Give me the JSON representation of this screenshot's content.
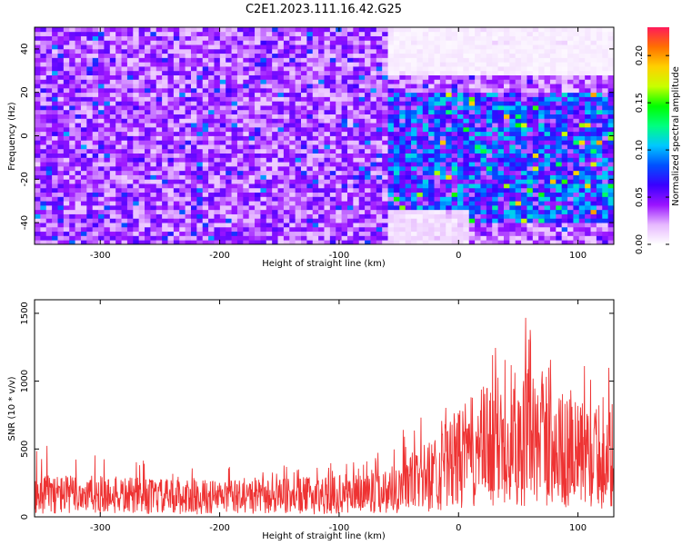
{
  "title": "C2E1.2023.111.16.42.G25",
  "chart_data": [
    {
      "type": "heatmap",
      "xlabel": "Height of straight line (km)",
      "ylabel": "Frequency (Hz)",
      "xlim": [
        -355,
        130
      ],
      "ylim": [
        -50,
        50
      ],
      "xticks": [
        -300,
        -200,
        -100,
        0,
        100
      ],
      "yticks": [
        -40,
        -20,
        0,
        20,
        40
      ],
      "colorbar": {
        "label": "Normalized spectral amplitude",
        "range": [
          0,
          0.23
        ],
        "ticks": [
          0.0,
          0.05,
          0.1,
          0.15,
          0.2
        ],
        "tick_labels": [
          "0.00",
          "0.05",
          "0.10",
          "0.15",
          "0.20"
        ],
        "colors": [
          "#ffffff",
          "#e6b8ff",
          "#9a14ff",
          "#3a00ff",
          "#0050ff",
          "#00c8ff",
          "#00ff80",
          "#00ff00",
          "#c8ff00",
          "#ffd000",
          "#ff7000",
          "#ff1a5a"
        ]
      },
      "regions": [
        {
          "x": [
            -355,
            -60
          ],
          "y": [
            -50,
            50
          ],
          "level": 0.035,
          "note": "uniform purple/blue speckle"
        },
        {
          "x": [
            -60,
            130
          ],
          "y": [
            -40,
            20
          ],
          "level": 0.07,
          "note": "stronger blue-cyan band"
        },
        {
          "x": [
            -60,
            130
          ],
          "y": [
            28,
            50
          ],
          "level": 0.005,
          "note": "faint white region"
        },
        {
          "x": [
            -60,
            10
          ],
          "y": [
            -50,
            -35
          ],
          "level": 0.01,
          "note": "faint lower corner"
        }
      ]
    },
    {
      "type": "line",
      "xlabel": "Height of straight line (km)",
      "ylabel": "SNR (10 * v/v)",
      "xlim": [
        -355,
        130
      ],
      "ylim": [
        0,
        1600
      ],
      "xticks": [
        -300,
        -200,
        -100,
        0,
        100
      ],
      "yticks": [
        0,
        500,
        1000,
        1500
      ],
      "series": [
        {
          "color": "#ee3333",
          "envelope": {
            "x": [
              -355,
              -300,
              -250,
              -200,
              -150,
              -100,
              -60,
              -30,
              0,
              20,
              40,
              55,
              70,
              90,
              110,
              130
            ],
            "mean": [
              200,
              190,
              175,
              170,
              175,
              195,
              230,
              330,
              500,
              600,
              690,
              700,
              640,
              560,
              520,
              480
            ],
            "peak": [
              560,
              500,
              420,
              380,
              380,
              460,
              520,
              820,
              1050,
              1250,
              1500,
              1550,
              1400,
              1200,
              1150,
              1100
            ]
          }
        }
      ]
    }
  ]
}
